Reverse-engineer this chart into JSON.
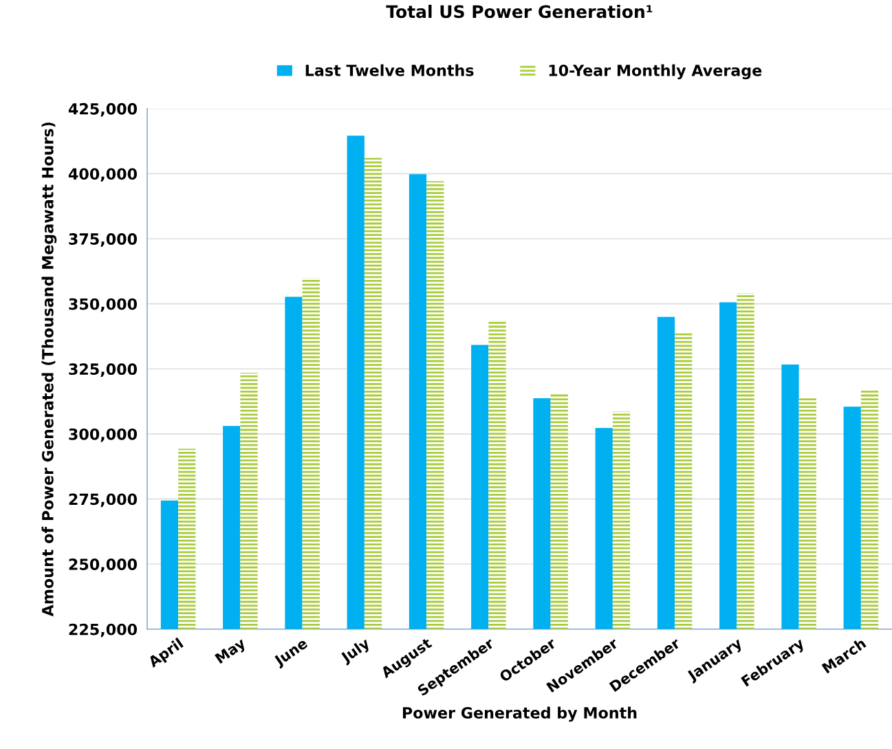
{
  "chart_data": {
    "type": "bar",
    "title": "Total US Power Generation¹",
    "xlabel": "Power Generated by Month",
    "ylabel": "Amount of Power Generated (Thousand Megawatt Hours)",
    "categories": [
      "April",
      "May",
      "June",
      "July",
      "August",
      "September",
      "October",
      "November",
      "December",
      "January",
      "February",
      "March"
    ],
    "series": [
      {
        "name": "Last Twelve Months",
        "color": "#00b0f0",
        "values": [
          274400,
          303100,
          352700,
          414600,
          399800,
          334200,
          313700,
          302300,
          345000,
          350600,
          326700,
          310500
        ]
      },
      {
        "name": "10-Year Monthly Average",
        "color": "#a9cc3c",
        "values": [
          294300,
          323500,
          359900,
          406100,
          397100,
          343700,
          315300,
          308700,
          338900,
          354100,
          314000,
          316900
        ]
      }
    ],
    "ylim": [
      225000,
      425000
    ],
    "yticks": [
      {
        "value": 225000,
        "label": "225,000"
      },
      {
        "value": 250000,
        "label": "250,000"
      },
      {
        "value": 275000,
        "label": "275,000"
      },
      {
        "value": 300000,
        "label": "300,000"
      },
      {
        "value": 325000,
        "label": "325,000"
      },
      {
        "value": 350000,
        "label": "350,000"
      },
      {
        "value": 375000,
        "label": "375,000"
      },
      {
        "value": 400000,
        "label": "400,000"
      },
      {
        "value": 425000,
        "label": "425,000"
      }
    ],
    "grid": "y",
    "legend": "top"
  }
}
